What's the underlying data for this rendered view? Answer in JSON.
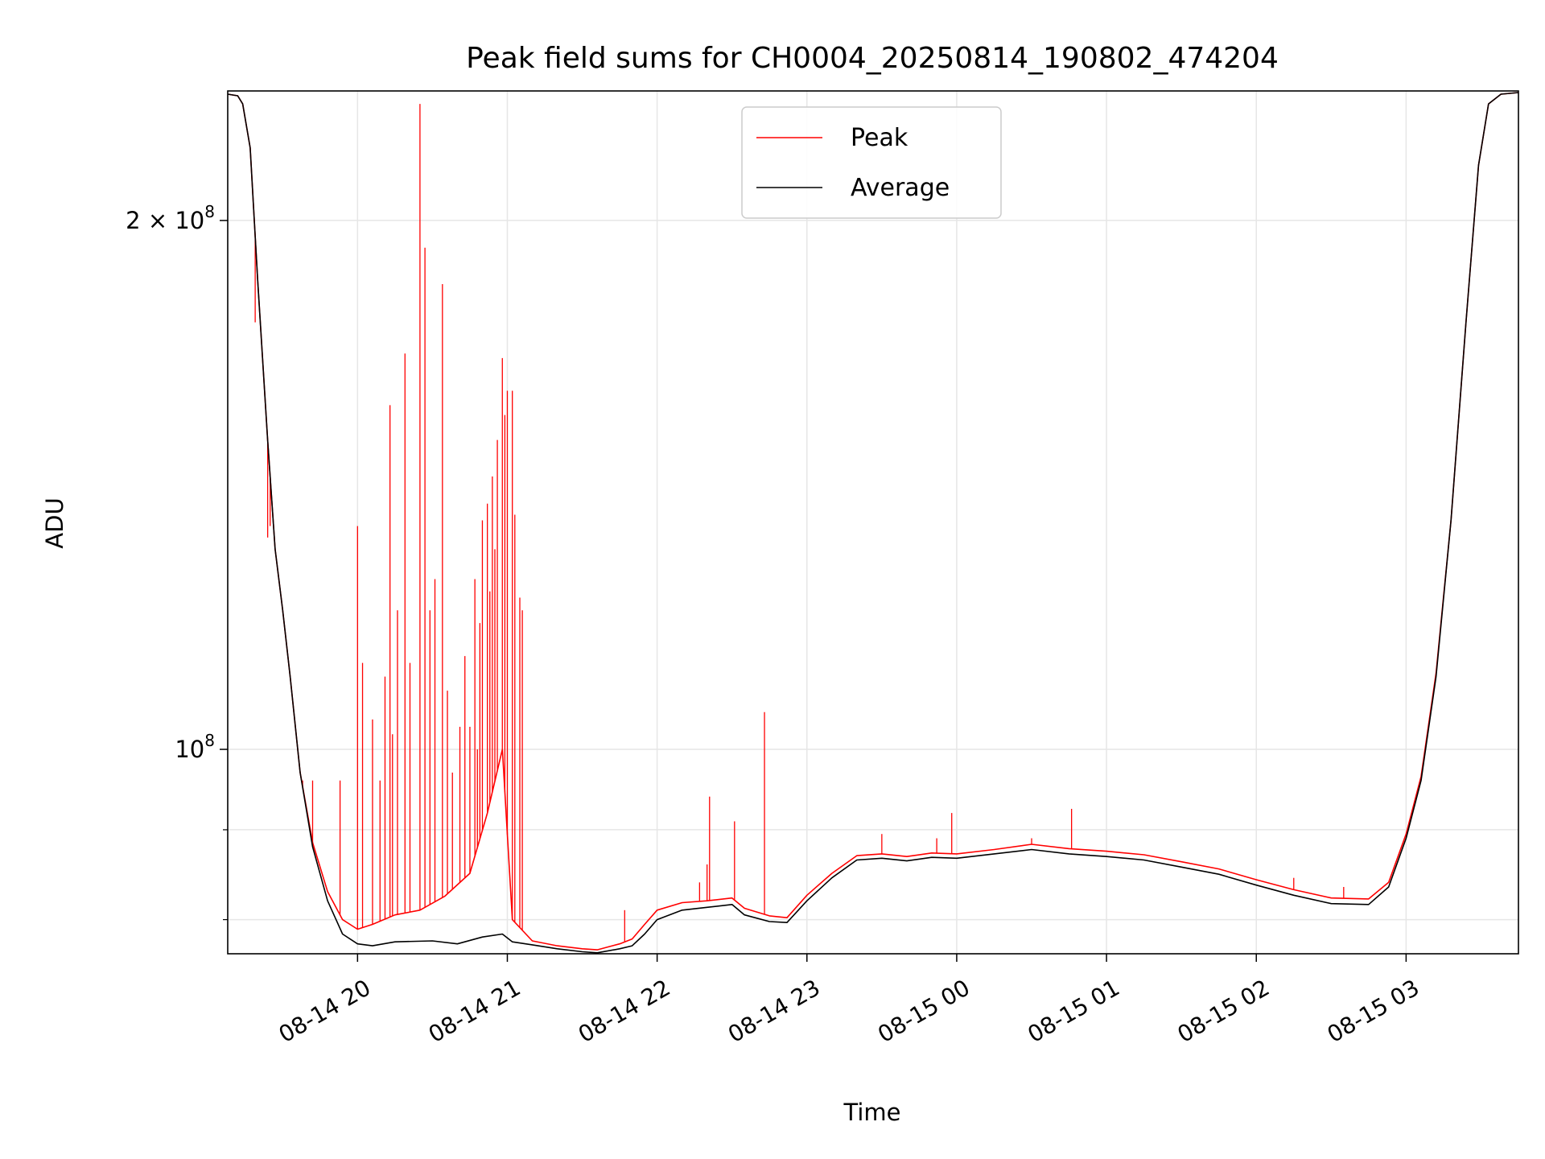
{
  "chart_data": {
    "type": "line",
    "title": "Peak field sums for CH0004_20250814_190802_474204",
    "xlabel": "Time",
    "ylabel": "ADU",
    "y_scale": "log",
    "xlim": [
      "2025-08-14 19:08",
      "2025-08-15 03:45"
    ],
    "ylim": [
      76500000,
      237000000
    ],
    "grid": true,
    "legend_position": "upper center",
    "x_ticks": [
      {
        "value": "2025-08-14 20:00",
        "label": "08-14 20"
      },
      {
        "value": "2025-08-14 21:00",
        "label": "08-14 21"
      },
      {
        "value": "2025-08-14 22:00",
        "label": "08-14 22"
      },
      {
        "value": "2025-08-14 23:00",
        "label": "08-14 23"
      },
      {
        "value": "2025-08-15 00:00",
        "label": "08-15 00"
      },
      {
        "value": "2025-08-15 01:00",
        "label": "08-15 01"
      },
      {
        "value": "2025-08-15 02:00",
        "label": "08-15 02"
      },
      {
        "value": "2025-08-15 03:00",
        "label": "08-15 03"
      }
    ],
    "y_major_ticks": [
      {
        "value": 100000000,
        "label_base": "10",
        "label_exp": "8",
        "label_mantissa": ""
      },
      {
        "value": 200000000,
        "label_base": "10",
        "label_exp": "8",
        "label_mantissa": "2 × "
      }
    ],
    "y_minor_ticks": [
      80000000,
      90000000
    ],
    "series": [
      {
        "name": "Average",
        "color": "#000000",
        "points": [
          [
            "2025-08-14 19:08",
            236000000
          ],
          [
            "2025-08-14 19:12",
            235500000
          ],
          [
            "2025-08-14 19:14",
            233000000
          ],
          [
            "2025-08-14 19:17",
            220000000
          ],
          [
            "2025-08-14 19:20",
            185000000
          ],
          [
            "2025-08-14 19:24",
            150000000
          ],
          [
            "2025-08-14 19:27",
            130000000
          ],
          [
            "2025-08-14 19:30",
            120000000
          ],
          [
            "2025-08-14 19:33",
            110000000
          ],
          [
            "2025-08-14 19:37",
            97000000
          ],
          [
            "2025-08-14 19:42",
            88000000
          ],
          [
            "2025-08-14 19:48",
            82000000
          ],
          [
            "2025-08-14 19:54",
            78500000
          ],
          [
            "2025-08-14 20:00",
            77500000
          ],
          [
            "2025-08-14 20:06",
            77300000
          ],
          [
            "2025-08-14 20:15",
            77700000
          ],
          [
            "2025-08-14 20:30",
            77800000
          ],
          [
            "2025-08-14 20:40",
            77500000
          ],
          [
            "2025-08-14 20:50",
            78200000
          ],
          [
            "2025-08-14 20:58",
            78500000
          ],
          [
            "2025-08-14 21:02",
            77700000
          ],
          [
            "2025-08-14 21:10",
            77400000
          ],
          [
            "2025-08-14 21:20",
            77000000
          ],
          [
            "2025-08-14 21:30",
            76700000
          ],
          [
            "2025-08-14 21:36",
            76600000
          ],
          [
            "2025-08-14 21:45",
            77000000
          ],
          [
            "2025-08-14 21:50",
            77300000
          ],
          [
            "2025-08-14 21:55",
            78500000
          ],
          [
            "2025-08-14 22:00",
            80000000
          ],
          [
            "2025-08-14 22:10",
            81000000
          ],
          [
            "2025-08-14 22:20",
            81300000
          ],
          [
            "2025-08-14 22:30",
            81600000
          ],
          [
            "2025-08-14 22:35",
            80500000
          ],
          [
            "2025-08-14 22:45",
            79800000
          ],
          [
            "2025-08-14 22:52",
            79700000
          ],
          [
            "2025-08-14 23:00",
            82000000
          ],
          [
            "2025-08-14 23:10",
            84500000
          ],
          [
            "2025-08-14 23:20",
            86500000
          ],
          [
            "2025-08-14 23:30",
            86700000
          ],
          [
            "2025-08-14 23:40",
            86400000
          ],
          [
            "2025-08-14 23:50",
            86800000
          ],
          [
            "2025-08-15 00:00",
            86700000
          ],
          [
            "2025-08-15 00:15",
            87200000
          ],
          [
            "2025-08-15 00:30",
            87700000
          ],
          [
            "2025-08-15 00:45",
            87200000
          ],
          [
            "2025-08-15 01:00",
            86900000
          ],
          [
            "2025-08-15 01:15",
            86500000
          ],
          [
            "2025-08-15 01:30",
            85700000
          ],
          [
            "2025-08-15 01:45",
            84900000
          ],
          [
            "2025-08-15 02:00",
            83700000
          ],
          [
            "2025-08-15 02:15",
            82600000
          ],
          [
            "2025-08-15 02:30",
            81700000
          ],
          [
            "2025-08-15 02:45",
            81600000
          ],
          [
            "2025-08-15 02:53",
            83500000
          ],
          [
            "2025-08-15 03:00",
            89000000
          ],
          [
            "2025-08-15 03:06",
            96000000
          ],
          [
            "2025-08-15 03:12",
            110000000
          ],
          [
            "2025-08-15 03:18",
            135000000
          ],
          [
            "2025-08-15 03:24",
            175000000
          ],
          [
            "2025-08-15 03:29",
            215000000
          ],
          [
            "2025-08-15 03:33",
            233000000
          ],
          [
            "2025-08-15 03:38",
            236000000
          ],
          [
            "2025-08-15 03:45",
            236500000
          ]
        ]
      },
      {
        "name": "Peak",
        "color": "#ff0000",
        "points": [
          [
            "2025-08-14 19:08",
            236000000
          ],
          [
            "2025-08-14 19:12",
            235500000
          ],
          [
            "2025-08-14 19:14",
            233000000
          ],
          [
            "2025-08-14 19:17",
            220000000
          ],
          [
            "2025-08-14 19:20",
            185000000
          ],
          [
            "2025-08-14 19:24",
            150000000
          ],
          [
            "2025-08-14 19:27",
            130000000
          ],
          [
            "2025-08-14 19:30",
            120000000
          ],
          [
            "2025-08-14 19:33",
            110000000
          ],
          [
            "2025-08-14 19:37",
            97000000
          ],
          [
            "2025-08-14 19:42",
            88500000
          ],
          [
            "2025-08-14 19:48",
            83000000
          ],
          [
            "2025-08-14 19:54",
            80000000
          ],
          [
            "2025-08-14 20:00",
            79000000
          ],
          [
            "2025-08-14 20:06",
            79500000
          ],
          [
            "2025-08-14 20:15",
            80500000
          ],
          [
            "2025-08-14 20:25",
            81000000
          ],
          [
            "2025-08-14 20:35",
            82500000
          ],
          [
            "2025-08-14 20:45",
            85000000
          ],
          [
            "2025-08-14 20:52",
            92000000
          ],
          [
            "2025-08-14 20:58",
            100000000
          ],
          [
            "2025-08-14 21:02",
            80000000
          ],
          [
            "2025-08-14 21:10",
            77800000
          ],
          [
            "2025-08-14 21:20",
            77300000
          ],
          [
            "2025-08-14 21:30",
            77000000
          ],
          [
            "2025-08-14 21:36",
            76900000
          ],
          [
            "2025-08-14 21:45",
            77500000
          ],
          [
            "2025-08-14 21:50",
            78000000
          ],
          [
            "2025-08-14 21:55",
            79500000
          ],
          [
            "2025-08-14 22:00",
            81000000
          ],
          [
            "2025-08-14 22:10",
            81800000
          ],
          [
            "2025-08-14 22:20",
            82000000
          ],
          [
            "2025-08-14 22:30",
            82300000
          ],
          [
            "2025-08-14 22:35",
            81200000
          ],
          [
            "2025-08-14 22:45",
            80400000
          ],
          [
            "2025-08-14 22:52",
            80200000
          ],
          [
            "2025-08-14 23:00",
            82600000
          ],
          [
            "2025-08-14 23:10",
            85000000
          ],
          [
            "2025-08-14 23:20",
            87000000
          ],
          [
            "2025-08-14 23:30",
            87200000
          ],
          [
            "2025-08-14 23:40",
            86900000
          ],
          [
            "2025-08-14 23:50",
            87300000
          ],
          [
            "2025-08-15 00:00",
            87200000
          ],
          [
            "2025-08-15 00:15",
            87700000
          ],
          [
            "2025-08-15 00:30",
            88300000
          ],
          [
            "2025-08-15 00:45",
            87800000
          ],
          [
            "2025-08-15 01:00",
            87500000
          ],
          [
            "2025-08-15 01:15",
            87100000
          ],
          [
            "2025-08-15 01:30",
            86300000
          ],
          [
            "2025-08-15 01:45",
            85500000
          ],
          [
            "2025-08-15 02:00",
            84300000
          ],
          [
            "2025-08-15 02:15",
            83200000
          ],
          [
            "2025-08-15 02:30",
            82300000
          ],
          [
            "2025-08-15 02:45",
            82200000
          ],
          [
            "2025-08-15 02:53",
            84000000
          ],
          [
            "2025-08-15 03:00",
            89500000
          ],
          [
            "2025-08-15 03:06",
            96500000
          ],
          [
            "2025-08-15 03:12",
            110500000
          ],
          [
            "2025-08-15 03:18",
            135000000
          ],
          [
            "2025-08-15 03:24",
            175000000
          ],
          [
            "2025-08-15 03:29",
            215000000
          ],
          [
            "2025-08-15 03:33",
            233000000
          ],
          [
            "2025-08-15 03:38",
            236000000
          ],
          [
            "2025-08-15 03:45",
            236500000
          ]
        ],
        "spikes": [
          [
            "2025-08-14 19:19",
            175000000
          ],
          [
            "2025-08-14 19:24",
            132000000
          ],
          [
            "2025-08-14 19:25",
            134000000
          ],
          [
            "2025-08-14 19:38",
            96000000
          ],
          [
            "2025-08-14 19:42",
            96000000
          ],
          [
            "2025-08-14 19:53",
            96000000
          ],
          [
            "2025-08-14 20:00",
            134000000
          ],
          [
            "2025-08-14 20:02",
            112000000
          ],
          [
            "2025-08-14 20:06",
            104000000
          ],
          [
            "2025-08-14 20:09",
            96000000
          ],
          [
            "2025-08-14 20:11",
            110000000
          ],
          [
            "2025-08-14 20:13",
            157000000
          ],
          [
            "2025-08-14 20:14",
            102000000
          ],
          [
            "2025-08-14 20:16",
            120000000
          ],
          [
            "2025-08-14 20:19",
            168000000
          ],
          [
            "2025-08-14 20:21",
            112000000
          ],
          [
            "2025-08-14 20:25",
            233000000
          ],
          [
            "2025-08-14 20:27",
            193000000
          ],
          [
            "2025-08-14 20:29",
            120000000
          ],
          [
            "2025-08-14 20:31",
            125000000
          ],
          [
            "2025-08-14 20:34",
            184000000
          ],
          [
            "2025-08-14 20:36",
            108000000
          ],
          [
            "2025-08-14 20:38",
            97000000
          ],
          [
            "2025-08-14 20:41",
            103000000
          ],
          [
            "2025-08-14 20:43",
            113000000
          ],
          [
            "2025-08-14 20:45",
            103000000
          ],
          [
            "2025-08-14 20:47",
            125000000
          ],
          [
            "2025-08-14 20:48",
            100000000
          ],
          [
            "2025-08-14 20:49",
            118000000
          ],
          [
            "2025-08-14 20:50",
            135000000
          ],
          [
            "2025-08-14 20:52",
            138000000
          ],
          [
            "2025-08-14 20:53",
            123000000
          ],
          [
            "2025-08-14 20:54",
            143000000
          ],
          [
            "2025-08-14 20:55",
            130000000
          ],
          [
            "2025-08-14 20:56",
            150000000
          ],
          [
            "2025-08-14 20:58",
            167000000
          ],
          [
            "2025-08-14 20:59",
            155000000
          ],
          [
            "2025-08-14 21:00",
            160000000
          ],
          [
            "2025-08-14 21:02",
            160000000
          ],
          [
            "2025-08-14 21:03",
            136000000
          ],
          [
            "2025-08-14 21:05",
            122000000
          ],
          [
            "2025-08-14 21:06",
            120000000
          ],
          [
            "2025-08-14 21:47",
            81000000
          ],
          [
            "2025-08-14 22:17",
            84000000
          ],
          [
            "2025-08-14 22:20",
            86000000
          ],
          [
            "2025-08-14 22:21",
            94000000
          ],
          [
            "2025-08-14 22:31",
            91000000
          ],
          [
            "2025-08-14 22:43",
            105000000
          ],
          [
            "2025-08-14 23:30",
            89500000
          ],
          [
            "2025-08-14 23:52",
            89000000
          ],
          [
            "2025-08-14 23:58",
            92000000
          ],
          [
            "2025-08-15 00:30",
            89000000
          ],
          [
            "2025-08-15 00:46",
            92500000
          ],
          [
            "2025-08-15 02:15",
            84500000
          ],
          [
            "2025-08-15 02:35",
            83500000
          ]
        ]
      }
    ]
  }
}
